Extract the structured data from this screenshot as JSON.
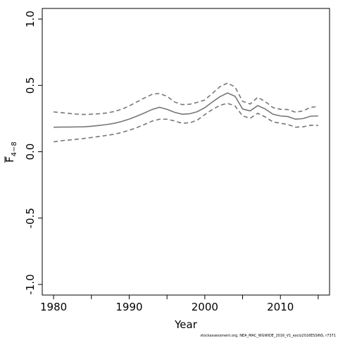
{
  "chart_data": {
    "type": "line",
    "xlabel": "Year",
    "ylabel_main": "F",
    "ylabel_sub": "4−8",
    "xlim": [
      1978.5,
      2016.5
    ],
    "ylim": [
      -1.08,
      1.08
    ],
    "xticks": [
      1980,
      1990,
      2000,
      2010
    ],
    "xtick_labels": [
      "1980",
      "1990",
      "2000",
      "2010"
    ],
    "yticks": [
      -1.0,
      -0.5,
      0.0,
      0.5,
      1.0
    ],
    "ytick_labels": [
      "-1.0",
      "-0.5",
      "0.0",
      "0.5",
      "1.0"
    ],
    "x": [
      1980,
      1981,
      1982,
      1983,
      1984,
      1985,
      1986,
      1987,
      1988,
      1989,
      1990,
      1991,
      1992,
      1993,
      1994,
      1995,
      1996,
      1997,
      1998,
      1999,
      2000,
      2001,
      2002,
      2003,
      2004,
      2005,
      2006,
      2007,
      2008,
      2009,
      2010,
      2011,
      2012,
      2013,
      2014,
      2015
    ],
    "series": [
      {
        "style": "solid",
        "color": "#777777",
        "values": [
          0.185,
          0.186,
          0.186,
          0.187,
          0.188,
          0.192,
          0.198,
          0.205,
          0.214,
          0.228,
          0.246,
          0.268,
          0.292,
          0.318,
          0.335,
          0.32,
          0.297,
          0.283,
          0.286,
          0.302,
          0.332,
          0.375,
          0.415,
          0.443,
          0.418,
          0.322,
          0.308,
          0.348,
          0.322,
          0.283,
          0.27,
          0.265,
          0.245,
          0.25,
          0.268,
          0.27
        ]
      },
      {
        "style": "dashed",
        "color": "#777777",
        "values": [
          0.3,
          0.295,
          0.289,
          0.284,
          0.281,
          0.283,
          0.286,
          0.292,
          0.303,
          0.32,
          0.345,
          0.375,
          0.405,
          0.432,
          0.44,
          0.418,
          0.375,
          0.355,
          0.358,
          0.372,
          0.39,
          0.44,
          0.49,
          0.518,
          0.488,
          0.38,
          0.36,
          0.41,
          0.378,
          0.333,
          0.32,
          0.318,
          0.298,
          0.308,
          0.335,
          0.34
        ]
      },
      {
        "style": "dashed",
        "color": "#777777",
        "values": [
          0.075,
          0.083,
          0.088,
          0.094,
          0.1,
          0.107,
          0.115,
          0.123,
          0.132,
          0.145,
          0.162,
          0.182,
          0.205,
          0.23,
          0.245,
          0.245,
          0.232,
          0.215,
          0.218,
          0.238,
          0.28,
          0.318,
          0.35,
          0.365,
          0.345,
          0.27,
          0.252,
          0.29,
          0.262,
          0.225,
          0.215,
          0.205,
          0.185,
          0.188,
          0.2,
          0.198
        ]
      }
    ]
  },
  "footnote": "stockassessment.org, NEA_MAC_WGWIDE_2016_V1_exclz2016ESSINS, r7371"
}
